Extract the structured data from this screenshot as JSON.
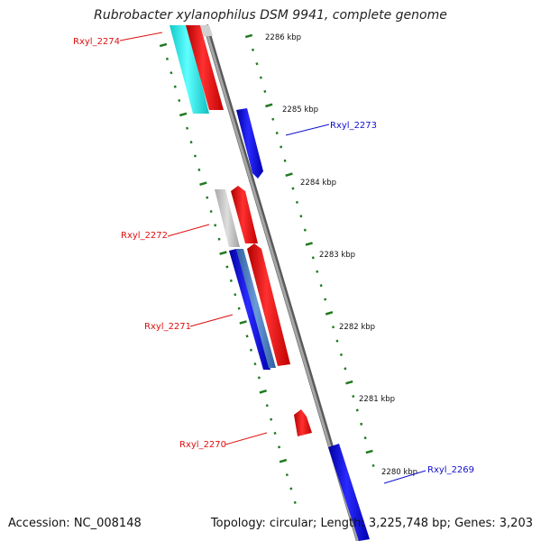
{
  "title": "Rubrobacter xylanophilus DSM 9941, complete genome",
  "accession": "Accession: NC_008148",
  "summary": "Topology: circular; Length: 3,225,748 bp; Genes: 3,203",
  "colors": {
    "backbone": "#8c8c8c",
    "forward_red": "#ff1a1a",
    "reverse_blue": "#1a1aff",
    "cyan": "#22e6e6",
    "gray": "#c8c8c8",
    "steel": "#4a7fc0",
    "tick_green": "#1f7a1f",
    "label_red": "#e01010",
    "label_blue": "#1010d0"
  },
  "ruler": [
    {
      "label": "2286 kbp"
    },
    {
      "label": "2285 kbp"
    },
    {
      "label": "2284 kbp"
    },
    {
      "label": "2283 kbp"
    },
    {
      "label": "2282 kbp"
    },
    {
      "label": "2281 kbp"
    },
    {
      "label": "2280 kbp"
    }
  ],
  "gene_labels": [
    {
      "name": "Rxyl_2274",
      "color": "red"
    },
    {
      "name": "Rxyl_2273",
      "color": "blue"
    },
    {
      "name": "Rxyl_2272",
      "color": "red"
    },
    {
      "name": "Rxyl_2271",
      "color": "red"
    },
    {
      "name": "Rxyl_2270",
      "color": "red"
    },
    {
      "name": "Rxyl_2269",
      "color": "blue"
    }
  ]
}
